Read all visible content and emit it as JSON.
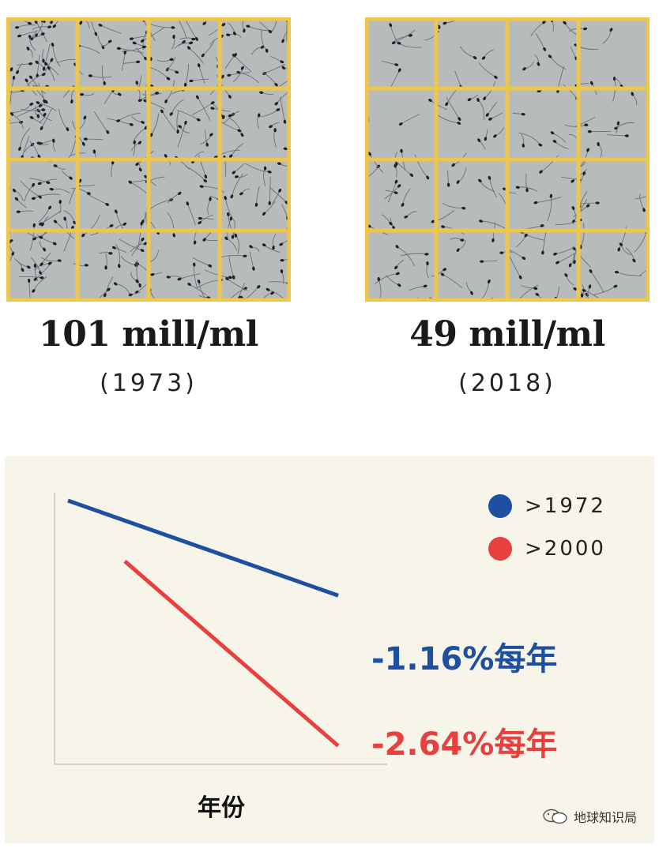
{
  "micrographs": [
    {
      "count": "101 mill/ml",
      "year": "(1973)"
    },
    {
      "count": "49 mill/ml",
      "year": "(2018)"
    }
  ],
  "colors": {
    "grid_line": "#f0c64a",
    "cell_bg": "#b8bbbc",
    "series_1972": "#1f4fa0",
    "series_2000": "#e8403f",
    "chart_bg": "#f7f4ea"
  },
  "chart_data": {
    "type": "line",
    "title": "",
    "xlabel": "年份",
    "ylabel": "",
    "grid": false,
    "legend_position": "top-right",
    "series": [
      {
        "name": ">1972",
        "annotation": "-1.16%每年",
        "color": "#1f4fa0",
        "start": 100,
        "end": 64
      },
      {
        "name": ">2000",
        "annotation": "-2.64%每年",
        "color": "#e8403f",
        "start": 77,
        "end": 7
      }
    ]
  },
  "watermark": {
    "text": "地球知识局",
    "icon": "wechat-icon"
  }
}
